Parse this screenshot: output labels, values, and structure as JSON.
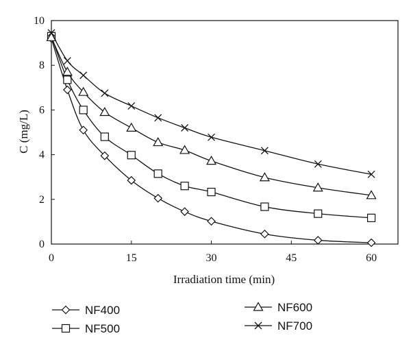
{
  "chart_data": {
    "type": "line",
    "xlabel": "Irradiation time (min)",
    "ylabel": "C (mg/L)",
    "xlim": [
      0,
      65
    ],
    "ylim": [
      0,
      10
    ],
    "xticks": [
      0,
      15,
      30,
      45,
      60
    ],
    "yticks": [
      0,
      2,
      4,
      6,
      8,
      10
    ],
    "grid": false,
    "legend_position": "bottom",
    "x": [
      0,
      3,
      6,
      10,
      15,
      20,
      25,
      30,
      40,
      50,
      60
    ],
    "series": [
      {
        "name": "NF400",
        "marker": "diamond",
        "values": [
          9.2,
          6.9,
          5.1,
          3.95,
          2.85,
          2.05,
          1.45,
          1.02,
          0.45,
          0.17,
          0.06
        ]
      },
      {
        "name": "NF500",
        "marker": "square",
        "values": [
          9.3,
          7.35,
          6.0,
          4.8,
          3.98,
          3.15,
          2.6,
          2.33,
          1.67,
          1.36,
          1.17
        ]
      },
      {
        "name": "NF600",
        "marker": "triangle",
        "values": [
          9.25,
          7.7,
          6.8,
          5.9,
          5.2,
          4.55,
          4.2,
          3.72,
          2.98,
          2.52,
          2.18
        ]
      },
      {
        "name": "NF700",
        "marker": "cross",
        "values": [
          9.45,
          8.2,
          7.55,
          6.75,
          6.18,
          5.65,
          5.2,
          4.78,
          4.18,
          3.58,
          3.12
        ]
      }
    ]
  }
}
